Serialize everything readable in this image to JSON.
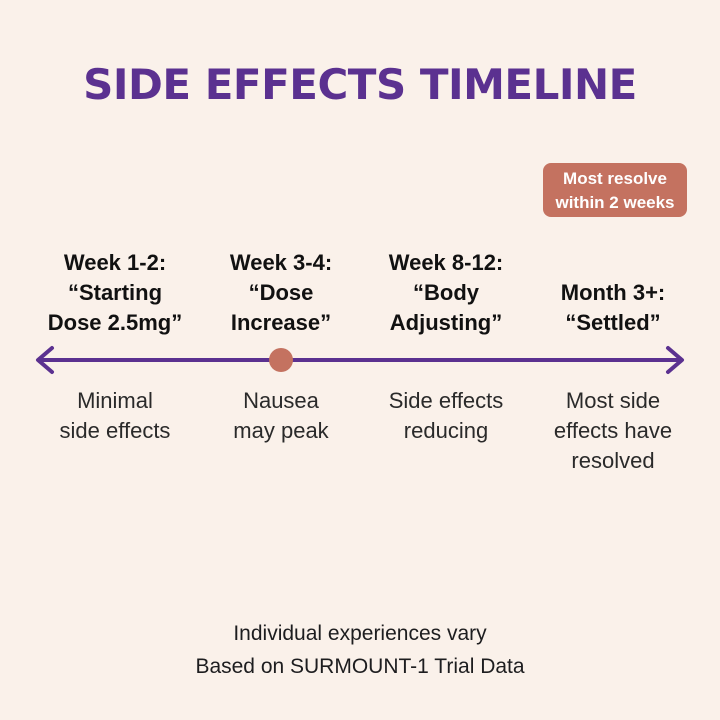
{
  "title": "SIDE EFFECTS TIMELINE",
  "callout": {
    "line1": "Most resolve",
    "line2": "within 2 weeks"
  },
  "stages": [
    {
      "label_lines": [
        "Week 1-2:",
        "“Starting",
        "Dose 2.5mg”"
      ],
      "desc_lines": [
        "Minimal",
        "side effects"
      ]
    },
    {
      "label_lines": [
        "Week 3-4:",
        "“Dose",
        "Increase”"
      ],
      "desc_lines": [
        "Nausea",
        "may peak"
      ]
    },
    {
      "label_lines": [
        "Week 8-12:",
        "“Body",
        "Adjusting”"
      ],
      "desc_lines": [
        "Side effects",
        "reducing"
      ]
    },
    {
      "label_lines": [
        "Month 3+:",
        "“Settled”"
      ],
      "desc_lines": [
        "Most side",
        "effects have",
        "resolved"
      ]
    }
  ],
  "footer": {
    "line1": "Individual experiences vary",
    "line2": "Based on SURMOUNT-1 Trial Data"
  },
  "colors": {
    "background": "#faf1ea",
    "title": "#5b3190",
    "timeline": "#5b3190",
    "marker": "#c47260",
    "callout": "#c47260"
  }
}
